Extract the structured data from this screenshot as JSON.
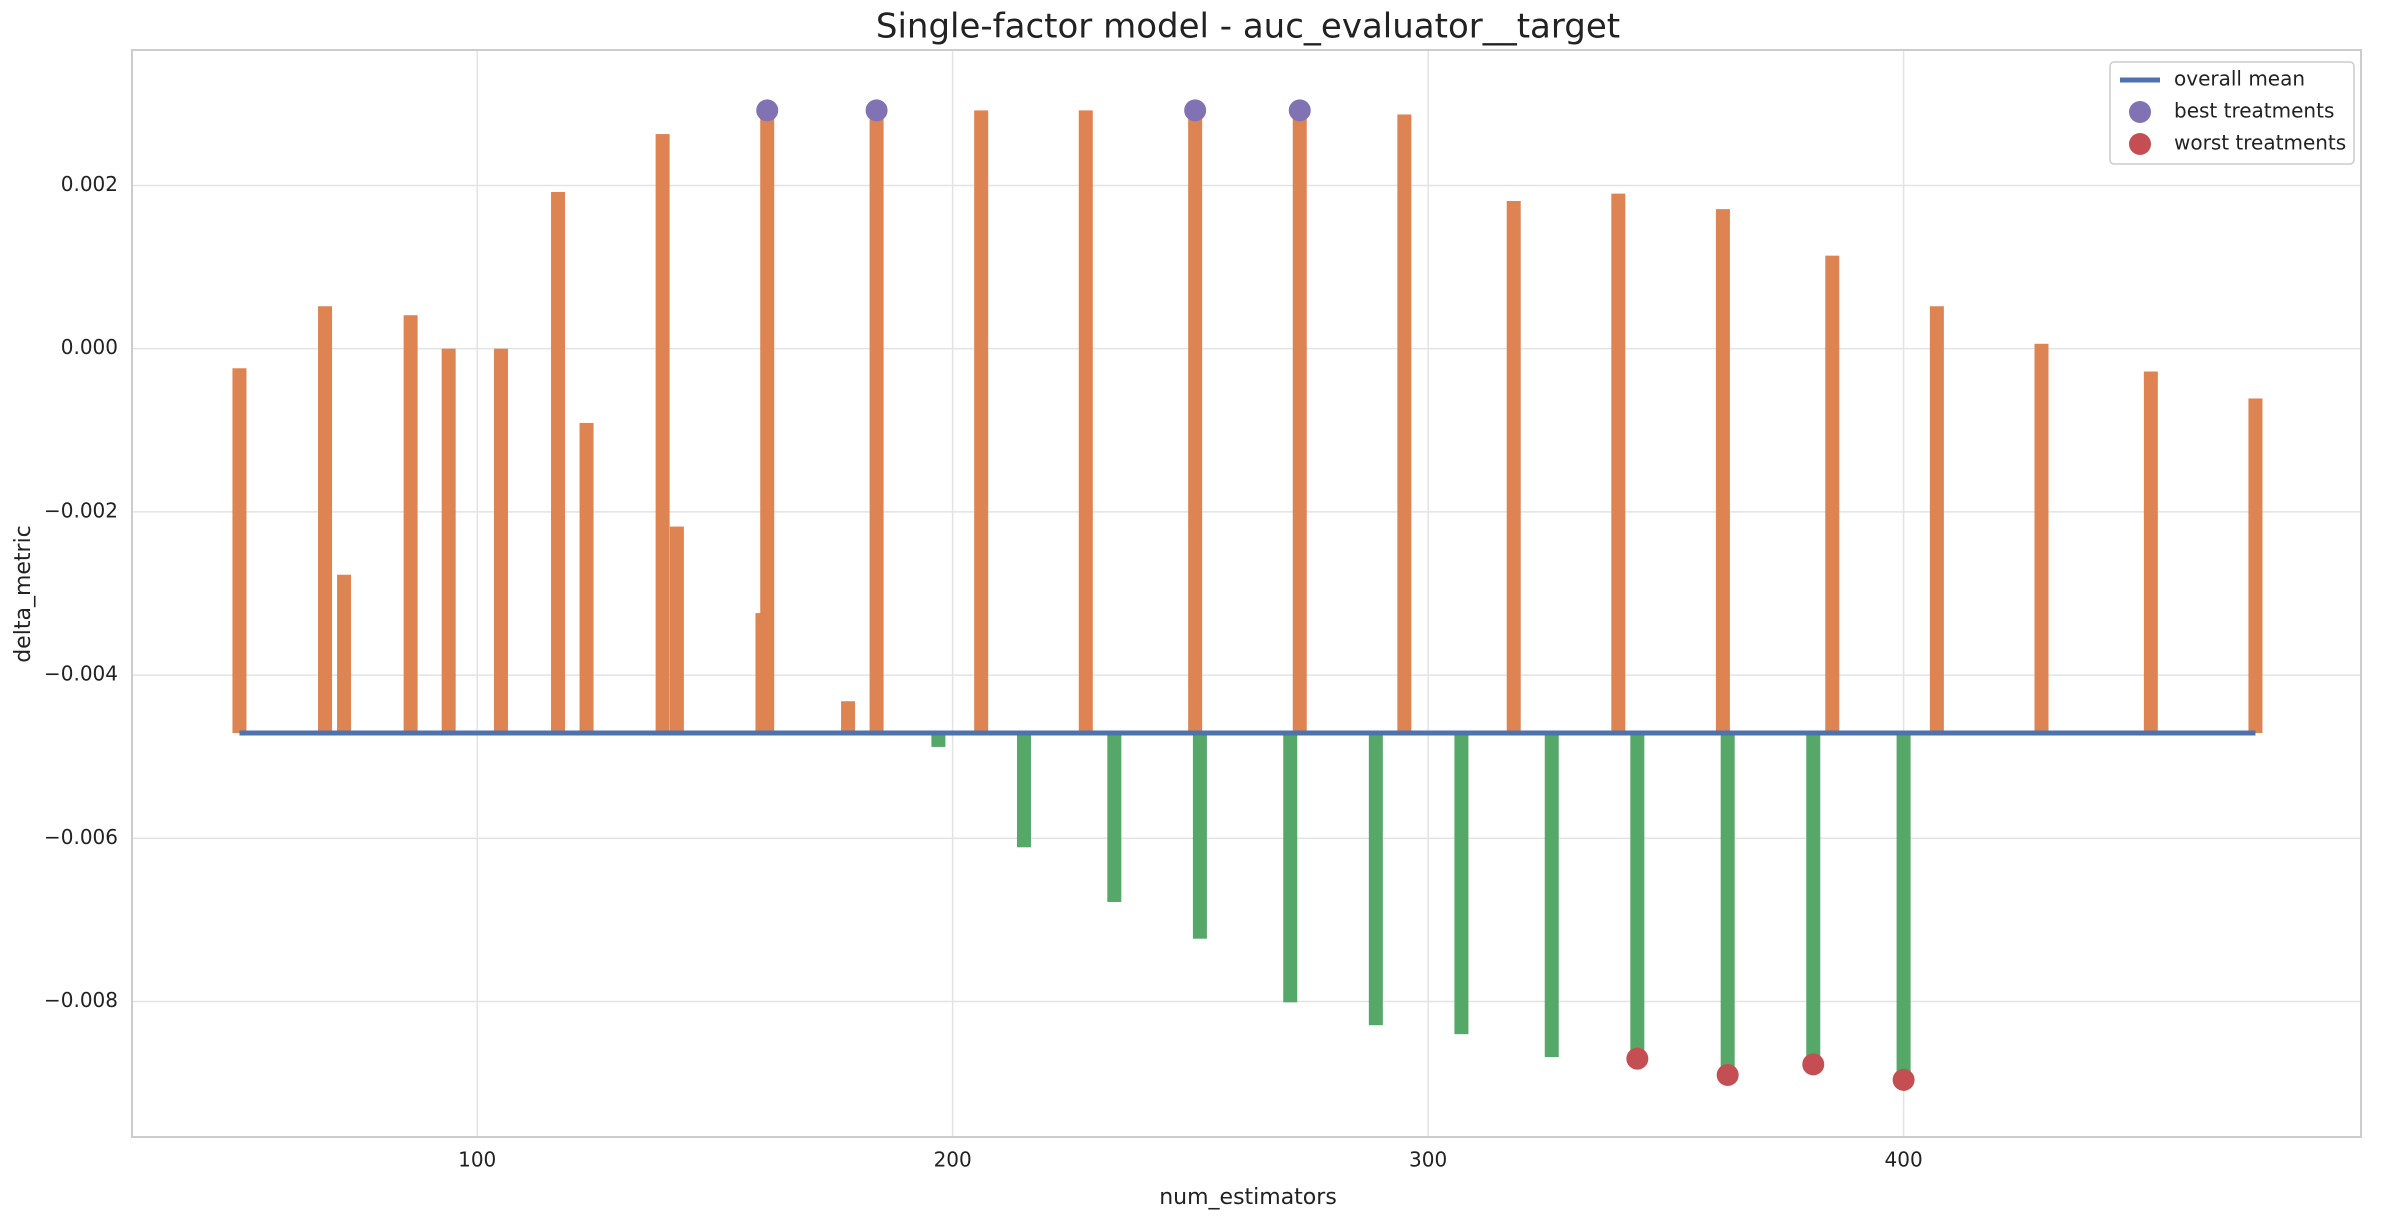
{
  "chart_data": {
    "type": "bar",
    "title": "Single-factor model - auc_evaluator__target",
    "x_label": "num_estimators",
    "y_label": "delta_metric",
    "xlim": [
      27.4,
      496.2
    ],
    "ylim": [
      -0.00966,
      0.00366
    ],
    "xticks": [
      100,
      200,
      300,
      400
    ],
    "yticks": [
      {
        "value": -0.008,
        "label": "−0.008"
      },
      {
        "value": -0.006,
        "label": "−0.006"
      },
      {
        "value": -0.004,
        "label": "−0.004"
      },
      {
        "value": -0.002,
        "label": "−0.002"
      },
      {
        "value": 0,
        "label": "0.000"
      },
      0.002
    ],
    "grid": true,
    "legend": "upper right",
    "bars": [
      {
        "color": "#dd8452",
        "x": [
          50,
          68,
          72,
          86,
          94,
          105,
          117,
          123,
          139,
          142,
          160,
          161,
          178,
          184,
          206,
          228,
          251,
          273,
          295,
          318,
          340,
          362,
          385,
          407,
          429,
          452,
          474
        ],
        "values": [
          -0.00024,
          0.00052,
          -0.00277,
          0.00041,
          0.0,
          0.0,
          0.00192,
          -0.00091,
          0.00263,
          -0.00218,
          -0.00324,
          0.00292,
          -0.00432,
          0.00292,
          0.00292,
          0.00292,
          0.00292,
          0.00292,
          0.00287,
          0.00181,
          0.0019,
          0.00171,
          0.00114,
          0.00052,
          6e-05,
          -0.00028,
          -0.00061
        ]
      },
      {
        "color": "#55a868",
        "x": [
          197,
          215,
          234,
          252,
          271,
          289,
          307,
          326,
          344,
          363,
          381,
          400
        ],
        "values": [
          -0.00488,
          -0.00611,
          -0.00678,
          -0.00723,
          -0.00801,
          -0.00829,
          -0.0084,
          -0.00868,
          -0.0087,
          -0.0089,
          -0.00877,
          -0.00896
        ]
      }
    ],
    "series": [
      {
        "name": "overall mean",
        "type": "line",
        "color": "#4c72b0",
        "x": [
          50,
          474
        ],
        "values": [
          -0.00471,
          -0.00471
        ]
      },
      {
        "name": "best treatments",
        "type": "scatter",
        "color": "#8172b3",
        "x": [
          161,
          184,
          251,
          273
        ],
        "values": [
          0.00292,
          0.00292,
          0.00292,
          0.00292
        ]
      },
      {
        "name": "worst treatments",
        "type": "scatter",
        "color": "#c44e52",
        "x": [
          344,
          363,
          381,
          400
        ],
        "values": [
          -0.0087,
          -0.0089,
          -0.00877,
          -0.00896
        ]
      }
    ]
  }
}
